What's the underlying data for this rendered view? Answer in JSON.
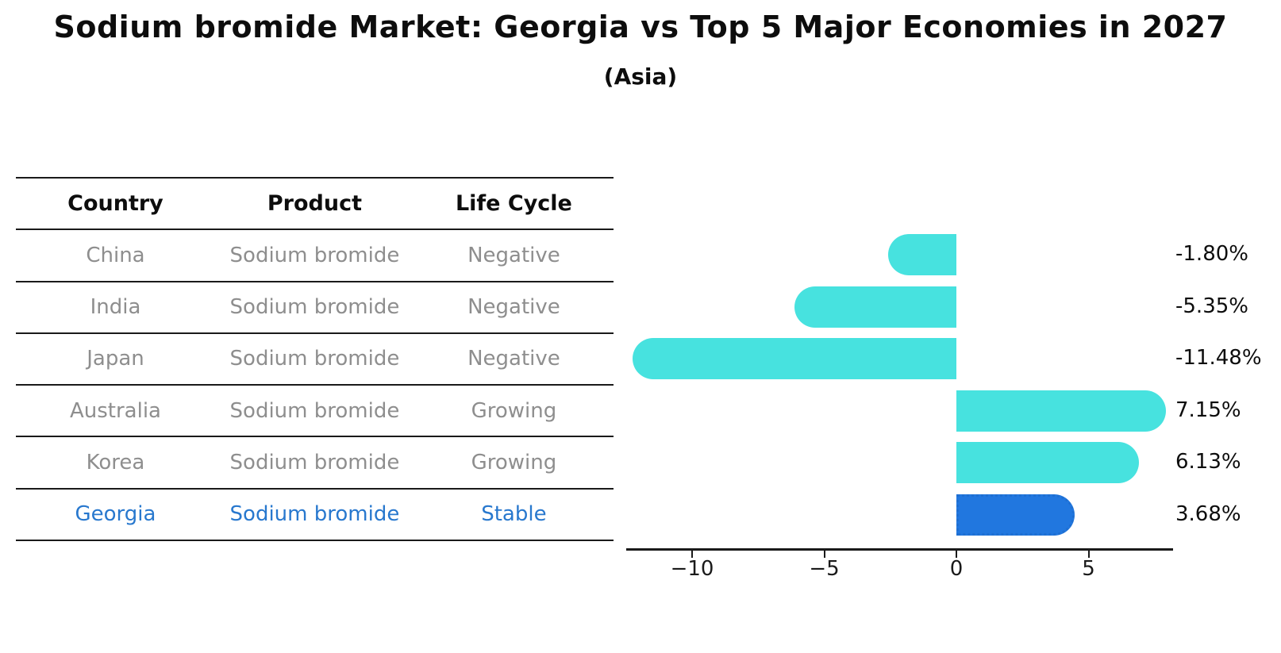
{
  "chart_data": {
    "type": "bar",
    "orientation": "horizontal",
    "title": "Sodium bromide Market: Georgia vs Top 5 Major Economies in 2027",
    "subtitle": "(Asia)",
    "categories": [
      "China",
      "India",
      "Japan",
      "Australia",
      "Korea",
      "Georgia"
    ],
    "values": [
      -1.8,
      -5.35,
      -11.48,
      7.15,
      6.13,
      3.68
    ],
    "value_labels": [
      "-1.80%",
      "-5.35%",
      "-11.48%",
      "7.15%",
      "6.13%",
      "3.68%"
    ],
    "x_ticks": [
      -10,
      -5,
      0,
      5
    ],
    "x_tick_labels": [
      "−10",
      "−5",
      "0",
      "5"
    ],
    "xlim": [
      -12.5,
      8.2
    ],
    "grid": false,
    "legend": false,
    "bar_color": "#47E2DF",
    "highlight_color": "#2177DF",
    "highlight_border_color": "#1e6fd2",
    "highlight_index": 5
  },
  "table": {
    "headers": [
      "Country",
      "Product",
      "Life Cycle"
    ],
    "rows": [
      {
        "country": "China",
        "product": "Sodium bromide",
        "life_cycle": "Negative",
        "highlight": false
      },
      {
        "country": "India",
        "product": "Sodium bromide",
        "life_cycle": "Negative",
        "highlight": false
      },
      {
        "country": "Japan",
        "product": "Sodium bromide",
        "life_cycle": "Negative",
        "highlight": false
      },
      {
        "country": "Australia",
        "product": "Sodium bromide",
        "life_cycle": "Growing",
        "highlight": false
      },
      {
        "country": "Korea",
        "product": "Sodium bromide",
        "life_cycle": "Growing",
        "highlight": false
      },
      {
        "country": "Georgia",
        "product": "Sodium bromide",
        "life_cycle": "Stable",
        "highlight": true
      }
    ]
  },
  "colors": {
    "highlight_text": "#2878CE",
    "table_text": "#8e8e8e",
    "header_text": "#0d0d0d",
    "axis": "#1a1a1a"
  }
}
